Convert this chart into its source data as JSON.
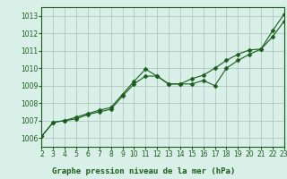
{
  "title": "Graphe pression niveau de la mer (hPa)",
  "bg_color": "#d8f0e8",
  "grid_color": "#b0c8c0",
  "line_color": "#1a5c1a",
  "xlim": [
    2,
    23
  ],
  "ylim": [
    1005.5,
    1013.5
  ],
  "yticks": [
    1006,
    1007,
    1008,
    1009,
    1010,
    1011,
    1012,
    1013
  ],
  "xticks": [
    2,
    3,
    4,
    5,
    6,
    7,
    8,
    9,
    10,
    11,
    12,
    13,
    14,
    15,
    16,
    17,
    18,
    19,
    20,
    21,
    22,
    23
  ],
  "series1_x": [
    2,
    3,
    4,
    5,
    6,
    7,
    8,
    9,
    10,
    11,
    12,
    13,
    14,
    15,
    16,
    17,
    18,
    19,
    20,
    21,
    22,
    23
  ],
  "series1_y": [
    1006.1,
    1006.9,
    1007.0,
    1007.1,
    1007.35,
    1007.5,
    1007.65,
    1008.4,
    1009.1,
    1009.55,
    1009.55,
    1009.1,
    1009.1,
    1009.1,
    1009.3,
    1009.0,
    1010.0,
    1010.45,
    1010.8,
    1011.1,
    1011.8,
    1012.7
  ],
  "series2_x": [
    2,
    3,
    4,
    5,
    6,
    7,
    8,
    9,
    10,
    11,
    12,
    13,
    14,
    15,
    16,
    17,
    18,
    19,
    20,
    21,
    22,
    23
  ],
  "series2_y": [
    1006.1,
    1006.9,
    1007.0,
    1007.2,
    1007.4,
    1007.6,
    1007.75,
    1008.5,
    1009.25,
    1009.95,
    1009.55,
    1009.1,
    1009.1,
    1009.4,
    1009.6,
    1010.0,
    1010.45,
    1010.8,
    1011.05,
    1011.1,
    1012.15,
    1013.1
  ],
  "marker": "D",
  "marker_size": 2.5,
  "linewidth": 0.8,
  "xlabel_fontsize": 6.5,
  "tick_fontsize": 5.5
}
